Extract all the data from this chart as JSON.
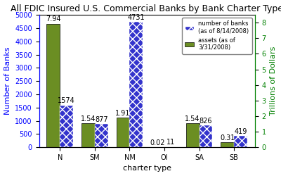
{
  "title": "All FDIC Insured U.S. Commercial Banks by Bank Charter Type",
  "categories": [
    "N",
    "SM",
    "NM",
    "OI",
    "SA",
    "SB"
  ],
  "bank_counts": [
    1574,
    877,
    4731,
    11,
    826,
    419
  ],
  "assets": [
    7.94,
    1.54,
    1.91,
    0.02,
    1.54,
    0.31
  ],
  "bank_color": "#3333cc",
  "asset_color": "#6b8e23",
  "xlabel": "charter type",
  "ylabel_left": "Number of Banks",
  "ylabel_right": "Trillions of Dollars",
  "ylim_left": [
    0,
    5000
  ],
  "ylim_right": [
    0,
    8.5
  ],
  "yticks_left": [
    0,
    500,
    1000,
    1500,
    2000,
    2500,
    3000,
    3500,
    4000,
    4500,
    5000
  ],
  "yticks_right": [
    0,
    1,
    2,
    3,
    4,
    5,
    6,
    7,
    8
  ],
  "legend_labels": [
    "number of banks\n(as of 8/14/2008)",
    "assets (as of\n3/31/2008)"
  ],
  "background_color": "#ffffff",
  "title_fontsize": 9,
  "axis_label_fontsize": 8,
  "tick_fontsize": 7,
  "annotation_fontsize": 7,
  "bar_width": 0.38
}
